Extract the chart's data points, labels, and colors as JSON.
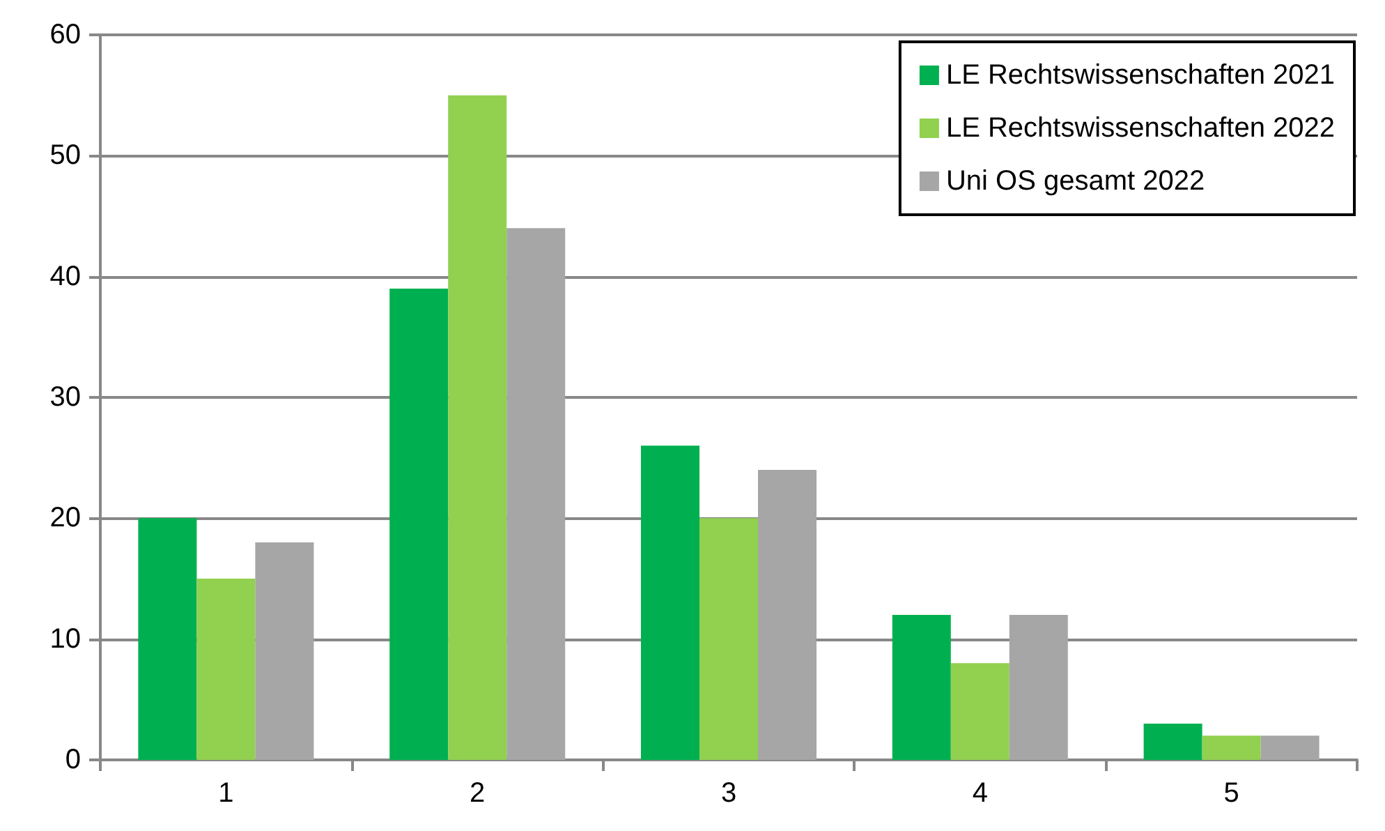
{
  "chart_data": {
    "type": "bar",
    "categories": [
      "1",
      "2",
      "3",
      "4",
      "5"
    ],
    "series": [
      {
        "name": "LE Rechtswissenschaften 2021",
        "color": "#00b050",
        "values": [
          20,
          39,
          26,
          12,
          3
        ]
      },
      {
        "name": "LE Rechtswissenschaften 2022",
        "color": "#92d050",
        "values": [
          15,
          55,
          20,
          8,
          2
        ]
      },
      {
        "name": "Uni OS gesamt 2022",
        "color": "#a6a6a6",
        "values": [
          18,
          44,
          24,
          12,
          2
        ]
      }
    ],
    "ylim": [
      0,
      60
    ],
    "yticks": [
      0,
      10,
      20,
      30,
      40,
      50,
      60
    ],
    "grid": "y",
    "legend": "top right"
  }
}
